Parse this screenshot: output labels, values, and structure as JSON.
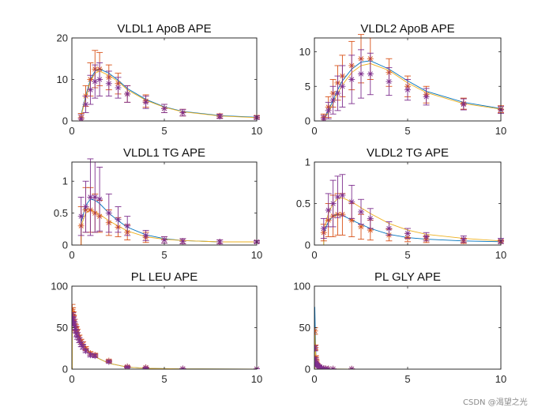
{
  "figure": {
    "watermark": "CSDN @渴望之光"
  },
  "series_colors": {
    "fit_blue": "#0072BD",
    "fit_yellow": "#EDB120",
    "err_orange": "#D95319",
    "err_purple": "#7E2F8E"
  },
  "chart_data": [
    {
      "type": "line",
      "title": "VLDL1 ApoB APE",
      "xlim": [
        0,
        10
      ],
      "ylim": [
        0,
        20
      ],
      "xticks": [
        0,
        5,
        10
      ],
      "yticks": [
        0,
        10,
        20
      ],
      "x": [
        0.5,
        0.75,
        1,
        1.25,
        1.5,
        2,
        2.5,
        3,
        4,
        5,
        6,
        8,
        10
      ],
      "series": [
        {
          "name": "model-blue",
          "style": "line",
          "color": "#0072BD",
          "values": [
            1.5,
            6,
            10,
            12,
            12.5,
            11.5,
            9.8,
            7.8,
            5.2,
            3.4,
            2.3,
            1.3,
            0.9
          ]
        },
        {
          "name": "model-yellow",
          "style": "line",
          "color": "#EDB120",
          "values": [
            1.2,
            5.5,
            9.5,
            11.5,
            12,
            11,
            9.5,
            7.5,
            5,
            3.3,
            2.2,
            1.2,
            0.8
          ]
        },
        {
          "name": "obs-orange",
          "style": "errorbar",
          "color": "#D95319",
          "values": [
            0.8,
            6,
            10,
            12.5,
            12.5,
            10.5,
            9,
            6.5,
            4.8,
            3,
            2,
            1.2,
            0.9
          ],
          "err": [
            1,
            2.5,
            4,
            4.5,
            4,
            3,
            2.5,
            2,
            1.5,
            1,
            0.8,
            0.5,
            0.4
          ]
        },
        {
          "name": "obs-purple",
          "style": "errorbar",
          "color": "#7E2F8E",
          "values": [
            0.5,
            4,
            7.5,
            9.5,
            10,
            9,
            8,
            6.5,
            4.5,
            3,
            2,
            1.1,
            0.8
          ],
          "err": [
            1,
            2,
            3.5,
            4,
            4,
            3,
            2.5,
            2,
            1.5,
            1,
            0.8,
            0.5,
            0.4
          ]
        }
      ]
    },
    {
      "type": "line",
      "title": "VLDL2 ApoB APE",
      "xlim": [
        0,
        10
      ],
      "ylim": [
        0,
        12
      ],
      "xticks": [
        0,
        5,
        10
      ],
      "yticks": [
        0,
        5,
        10
      ],
      "x": [
        0.5,
        0.75,
        1,
        1.25,
        1.5,
        2,
        2.5,
        3,
        4,
        5,
        6,
        8,
        10
      ],
      "series": [
        {
          "name": "model-blue",
          "style": "line",
          "color": "#0072BD",
          "values": [
            0.3,
            1.5,
            3,
            4.5,
            5.8,
            7.5,
            8.5,
            8.7,
            7.5,
            5.8,
            4.3,
            2.7,
            1.8
          ]
        },
        {
          "name": "model-yellow",
          "style": "line",
          "color": "#EDB120",
          "values": [
            0.2,
            1.2,
            2.5,
            4,
            5.2,
            7,
            8,
            8.3,
            7.3,
            5.5,
            4.1,
            2.5,
            1.7
          ]
        },
        {
          "name": "obs-orange",
          "style": "errorbar",
          "color": "#D95319",
          "values": [
            0.5,
            2,
            4,
            5.5,
            6.5,
            8,
            9,
            9,
            7,
            5,
            3.8,
            2.5,
            1.7
          ],
          "err": [
            0.5,
            1.5,
            2,
            2.5,
            3,
            3.5,
            3.5,
            3,
            2,
            1.5,
            1.2,
            0.8,
            0.5
          ]
        },
        {
          "name": "obs-purple",
          "style": "errorbar",
          "color": "#7E2F8E",
          "values": [
            0.3,
            1.5,
            3,
            4,
            5,
            6,
            6.8,
            6.8,
            5.7,
            4.5,
            3.5,
            2.4,
            1.6
          ],
          "err": [
            0.5,
            1.2,
            2,
            2.5,
            3,
            3.5,
            3.5,
            3,
            2,
            1.5,
            1.2,
            0.8,
            0.5
          ]
        }
      ]
    },
    {
      "type": "line",
      "title": "VLDL1 TG APE",
      "xlim": [
        0,
        10
      ],
      "ylim": [
        0,
        1.3
      ],
      "xticks": [
        0,
        5,
        10
      ],
      "yticks": [
        0,
        0.5,
        1
      ],
      "x": [
        0.5,
        0.75,
        1,
        1.25,
        1.5,
        2,
        2.5,
        3,
        4,
        5,
        6,
        8,
        10
      ],
      "series": [
        {
          "name": "model-blue",
          "style": "line",
          "color": "#0072BD",
          "values": [
            0.35,
            0.62,
            0.72,
            0.7,
            0.65,
            0.5,
            0.38,
            0.28,
            0.16,
            0.1,
            0.07,
            0.05,
            0.05
          ]
        },
        {
          "name": "model-yellow",
          "style": "line",
          "color": "#EDB120",
          "values": [
            0.3,
            0.5,
            0.55,
            0.52,
            0.48,
            0.38,
            0.3,
            0.22,
            0.13,
            0.09,
            0.07,
            0.05,
            0.05
          ]
        },
        {
          "name": "obs-orange",
          "style": "errorbar",
          "color": "#D95319",
          "values": [
            0.3,
            0.55,
            0.55,
            0.5,
            0.45,
            0.35,
            0.28,
            0.2,
            0.12,
            0.08,
            0.06,
            0.05,
            0.05
          ],
          "err": [
            0.3,
            0.35,
            0.35,
            0.3,
            0.25,
            0.2,
            0.15,
            0.12,
            0.08,
            0.05,
            0.04,
            0.03,
            0.02
          ]
        },
        {
          "name": "obs-purple",
          "style": "errorbar",
          "color": "#7E2F8E",
          "values": [
            0.45,
            0.6,
            0.75,
            0.75,
            0.72,
            0.5,
            0.4,
            0.3,
            0.15,
            0.08,
            0.06,
            0.05,
            0.05
          ],
          "err": [
            0.3,
            0.4,
            0.6,
            0.55,
            0.5,
            0.3,
            0.2,
            0.15,
            0.08,
            0.05,
            0.04,
            0.03,
            0.02
          ]
        }
      ]
    },
    {
      "type": "line",
      "title": "VLDL2 TG APE",
      "xlim": [
        0,
        10
      ],
      "ylim": [
        0,
        1
      ],
      "xticks": [
        0,
        5,
        10
      ],
      "yticks": [
        0,
        0.5,
        1
      ],
      "x": [
        0.5,
        0.75,
        1,
        1.25,
        1.5,
        2,
        2.5,
        3,
        4,
        5,
        6,
        8,
        10
      ],
      "series": [
        {
          "name": "model-blue",
          "style": "line",
          "color": "#0072BD",
          "values": [
            0.15,
            0.28,
            0.35,
            0.37,
            0.36,
            0.3,
            0.25,
            0.2,
            0.13,
            0.09,
            0.07,
            0.05,
            0.04
          ]
        },
        {
          "name": "model-yellow",
          "style": "line",
          "color": "#EDB120",
          "values": [
            0.18,
            0.38,
            0.5,
            0.56,
            0.57,
            0.52,
            0.45,
            0.38,
            0.26,
            0.18,
            0.13,
            0.08,
            0.05
          ]
        },
        {
          "name": "obs-orange",
          "style": "errorbar",
          "color": "#D95319",
          "values": [
            0.15,
            0.3,
            0.35,
            0.37,
            0.37,
            0.3,
            0.22,
            0.18,
            0.12,
            0.09,
            0.07,
            0.05,
            0.04
          ],
          "err": [
            0.1,
            0.2,
            0.25,
            0.25,
            0.25,
            0.2,
            0.15,
            0.12,
            0.07,
            0.05,
            0.04,
            0.03,
            0.02
          ]
        },
        {
          "name": "obs-purple",
          "style": "errorbar",
          "color": "#7E2F8E",
          "values": [
            0.2,
            0.42,
            0.5,
            0.58,
            0.6,
            0.52,
            0.4,
            0.32,
            0.2,
            0.14,
            0.1,
            0.07,
            0.05
          ],
          "err": [
            0.12,
            0.2,
            0.28,
            0.25,
            0.25,
            0.2,
            0.15,
            0.12,
            0.08,
            0.06,
            0.05,
            0.04,
            0.03
          ]
        }
      ]
    },
    {
      "type": "line",
      "title": "PL LEU APE",
      "xlim": [
        0,
        10
      ],
      "ylim": [
        0,
        100
      ],
      "xticks": [
        0,
        5,
        10
      ],
      "yticks": [
        0,
        50,
        100
      ],
      "x": [
        0.02,
        0.05,
        0.08,
        0.1,
        0.15,
        0.2,
        0.25,
        0.3,
        0.4,
        0.5,
        0.6,
        0.75,
        1,
        1.25,
        2,
        3,
        4,
        6,
        10
      ],
      "series": [
        {
          "name": "model-blue",
          "style": "line",
          "color": "#0072BD",
          "values": [
            66,
            64,
            62,
            60,
            56,
            52,
            48,
            45,
            40,
            35,
            31,
            26,
            20,
            15,
            7,
            2.5,
            1,
            0.3,
            0.1
          ]
        },
        {
          "name": "model-yellow",
          "style": "line",
          "color": "#EDB120",
          "values": [
            70,
            67,
            64,
            61,
            57,
            52,
            48,
            45,
            39,
            34,
            30,
            25,
            19,
            15,
            7,
            2.5,
            1,
            0.3,
            0.1
          ]
        },
        {
          "name": "obs-orange",
          "style": "errorbar",
          "color": "#D95319",
          "values": [
            72,
            68,
            64,
            60,
            55,
            50,
            47,
            44,
            38,
            33,
            30,
            25,
            19,
            17,
            10,
            3,
            2,
            0.5,
            0.2
          ],
          "err": [
            6,
            6,
            5,
            5,
            5,
            4,
            4,
            4,
            3,
            3,
            3,
            2,
            2,
            2,
            1.5,
            1,
            0.5,
            0.3,
            0.2
          ]
        },
        {
          "name": "obs-purple",
          "style": "errorbar",
          "color": "#7E2F8E",
          "values": [
            60,
            62,
            58,
            55,
            52,
            48,
            43,
            40,
            35,
            30,
            27,
            22,
            17,
            16,
            9,
            2.5,
            1.5,
            0.5,
            0.2
          ],
          "err": [
            6,
            6,
            5,
            5,
            5,
            4,
            4,
            4,
            3,
            3,
            3,
            2,
            2,
            2,
            1.5,
            1,
            0.5,
            0.3,
            0.2
          ]
        }
      ]
    },
    {
      "type": "line",
      "title": "PL GLY APE",
      "xlim": [
        0,
        10
      ],
      "ylim": [
        0,
        100
      ],
      "xticks": [
        0,
        5,
        10
      ],
      "yticks": [
        0,
        50,
        100
      ],
      "x": [
        0.02,
        0.05,
        0.08,
        0.1,
        0.15,
        0.2,
        0.25,
        0.3,
        0.4,
        0.5,
        0.6,
        0.75,
        1,
        2
      ],
      "series": [
        {
          "name": "model-blue",
          "style": "line",
          "color": "#0072BD",
          "values": [
            75,
            40,
            18,
            12,
            6,
            3.5,
            2.5,
            2,
            1.2,
            0.8,
            0.5,
            0.3,
            0.2,
            0.1
          ]
        },
        {
          "name": "model-yellow",
          "style": "line",
          "color": "#EDB120",
          "values": [
            45,
            28,
            15,
            10,
            5.5,
            3.5,
            2.5,
            2,
            1.2,
            0.8,
            0.5,
            0.3,
            0.2,
            0.1
          ]
        },
        {
          "name": "obs-orange",
          "style": "errorbar",
          "color": "#D95319",
          "values": [
            46,
            26,
            14,
            10,
            6,
            4,
            3,
            2.5,
            1.5,
            1,
            0.7,
            0.4,
            0.3,
            0.2
          ],
          "err": [
            4,
            3,
            2,
            1.5,
            1,
            0.8,
            0.6,
            0.5,
            0.3,
            0.2,
            0.2,
            0.1,
            0.1,
            0.1
          ]
        },
        {
          "name": "obs-purple",
          "style": "errorbar",
          "color": "#7E2F8E",
          "values": [
            25,
            12,
            7,
            6,
            5,
            4,
            3,
            2.5,
            1.5,
            1,
            0.6,
            0.4,
            0.3,
            0.2
          ],
          "err": [
            3,
            2,
            1.5,
            1,
            1,
            0.8,
            0.6,
            0.5,
            0.3,
            0.2,
            0.2,
            0.1,
            0.1,
            0.1
          ]
        }
      ]
    }
  ]
}
